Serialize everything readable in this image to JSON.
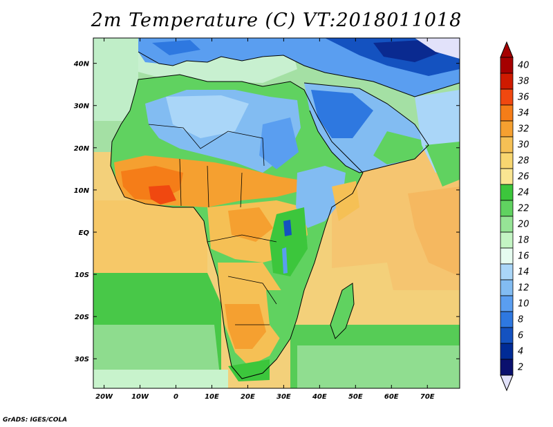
{
  "title": "2m Temperature (C) VT:2018011018",
  "footer": "GrADS: IGES/COLA",
  "map": {
    "region": "Africa, Arabian Peninsula, Mediterranean",
    "lon_range": [
      -23,
      79
    ],
    "lat_range": [
      -37,
      46
    ],
    "lat_ticks": [
      "40N",
      "30N",
      "20N",
      "10N",
      "EQ",
      "10S",
      "20S",
      "30S"
    ],
    "lon_ticks": [
      "20W",
      "10W",
      "0",
      "10E",
      "20E",
      "30E",
      "40E",
      "50E",
      "60E",
      "70E"
    ]
  },
  "colorbar": {
    "labels": [
      "40",
      "38",
      "36",
      "34",
      "32",
      "30",
      "28",
      "26",
      "24",
      "22",
      "20",
      "18",
      "16",
      "14",
      "12",
      "10",
      "8",
      "6",
      "4",
      "2"
    ],
    "colors": [
      "#a50000",
      "#cf1a00",
      "#f04810",
      "#f57d18",
      "#f5a030",
      "#f5c055",
      "#f8d670",
      "#fae592",
      "#3cc63c",
      "#60d260",
      "#96e496",
      "#c4f5c4",
      "#e6fcf0",
      "#aad6f8",
      "#82bcf2",
      "#5a9ef0",
      "#2e78e0",
      "#1452c0",
      "#002b96",
      "#0a106e"
    ],
    "under_color": "#e2e2fa",
    "over_color": "#a50000"
  }
}
